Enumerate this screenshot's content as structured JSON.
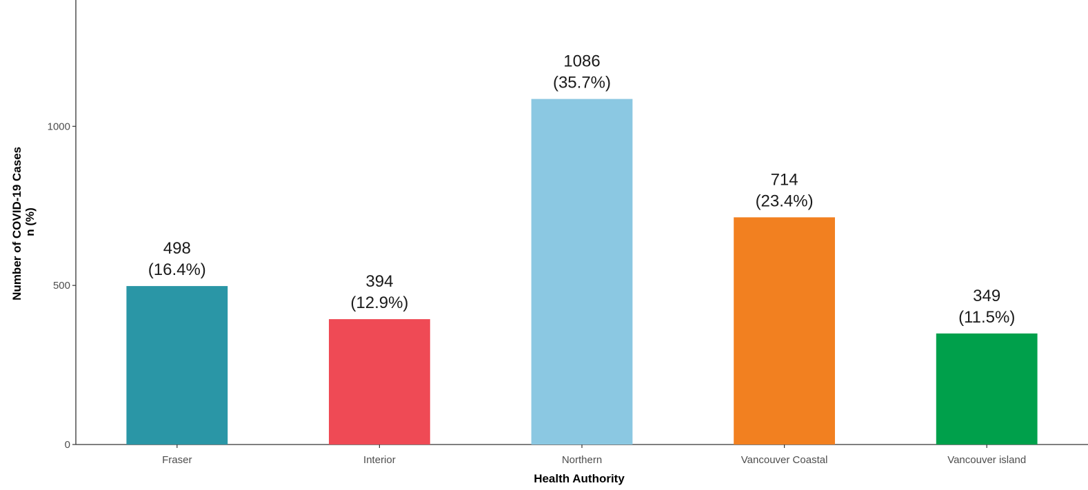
{
  "chart_data": {
    "type": "bar",
    "title": "",
    "xlabel": "Health Authority",
    "ylabel_lines": [
      "Number of COVID-19 Cases",
      "n (%)"
    ],
    "categories": [
      "Fraser",
      "Interior",
      "Northern",
      "Vancouver Coastal",
      "Vancouver island"
    ],
    "values": [
      498,
      394,
      1086,
      714,
      349
    ],
    "percent_labels": [
      "(16.4%)",
      "(12.9%)",
      "(35.7%)",
      "(23.4%)",
      "(11.5%)"
    ],
    "value_labels": [
      "498",
      "394",
      "1086",
      "714",
      "349"
    ],
    "colors": [
      "#2a96a6",
      "#ef4a55",
      "#8bc8e2",
      "#f28020",
      "#00a04b"
    ],
    "ylim": [
      0,
      1390
    ],
    "yticks": [
      0,
      500,
      1000
    ],
    "ytick_labels": [
      "0",
      "500",
      "1000"
    ],
    "grid": false,
    "legend": "none"
  }
}
